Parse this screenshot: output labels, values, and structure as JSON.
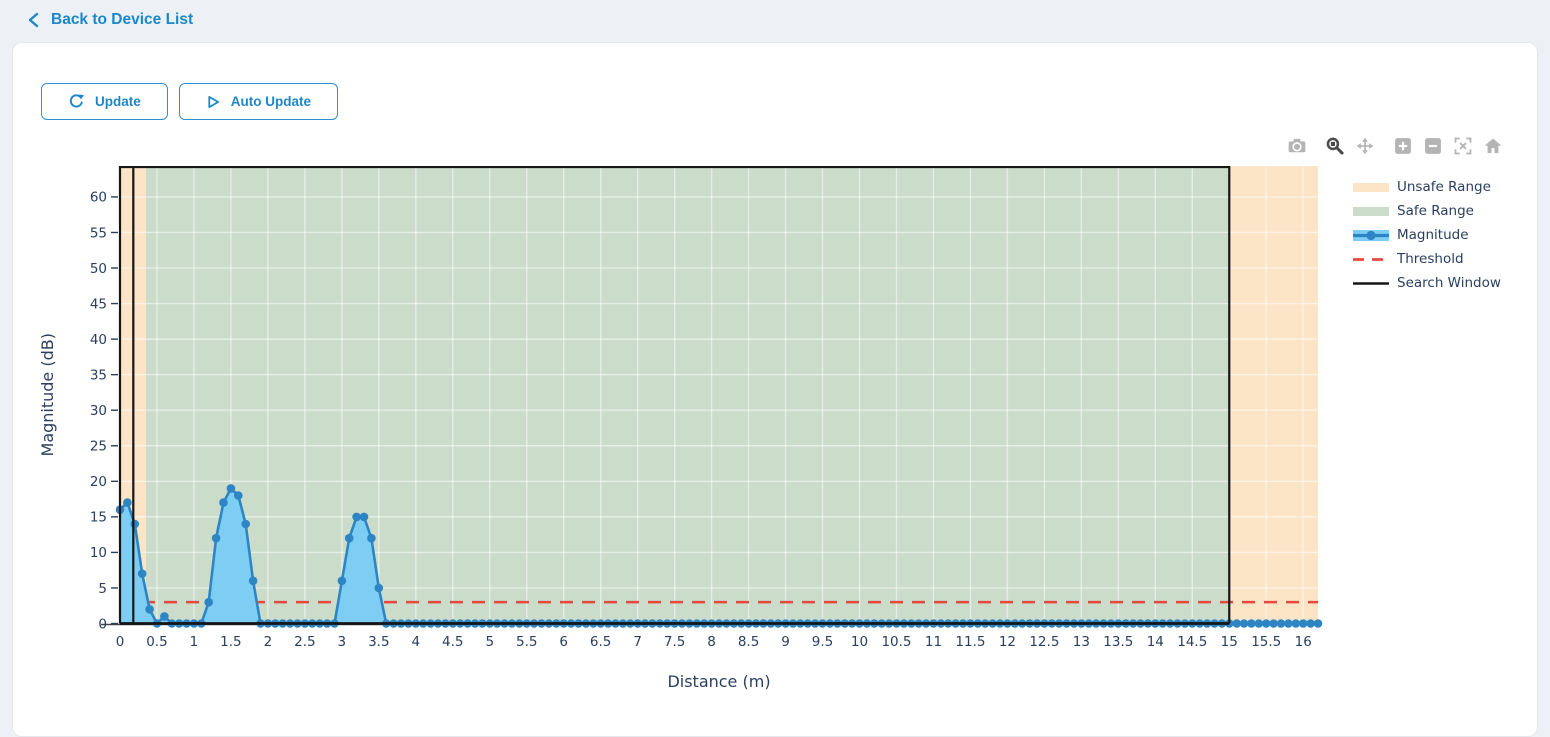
{
  "header": {
    "back_label": "Back to Device List"
  },
  "toolbar": {
    "update_label": "Update",
    "auto_update_label": "Auto Update"
  },
  "modebar": {
    "icons": [
      "camera",
      "zoom",
      "pan",
      "zoom-in",
      "zoom-out",
      "autoscale",
      "home"
    ],
    "active_icon": "zoom"
  },
  "colors": {
    "accent_blue": "#1d87c9",
    "unsafe_fill": "#fbe5c6",
    "safe_fill": "#cbdccb",
    "magnitude_line": "#2e85c4",
    "magnitude_fill": "#7ecdf3",
    "threshold_red": "#e8473e",
    "search_window_black": "#161616",
    "chart_text": "#2a3f5f",
    "axis_line": "#444444",
    "modebar_gray": "#b4b4b4",
    "modebar_active": "#4a4a4a"
  },
  "chart_data": {
    "type": "line",
    "title": "",
    "xlabel": "Distance (m)",
    "ylabel": "Magnitude (dB)",
    "xlim": [
      0,
      16.2
    ],
    "ylim": [
      0,
      64.35
    ],
    "grid": true,
    "legend_position": "right",
    "x_ticks": [
      "0",
      "0.5",
      "1",
      "1.5",
      "2",
      "2.5",
      "3",
      "3.5",
      "4",
      "4.5",
      "5",
      "5.5",
      "6",
      "6.5",
      "7",
      "7.5",
      "8",
      "8.5",
      "9",
      "9.5",
      "10",
      "10.5",
      "11",
      "11.5",
      "12",
      "12.5",
      "13",
      "13.5",
      "14",
      "14.5",
      "15",
      "15.5",
      "16"
    ],
    "y_ticks": [
      0,
      5,
      10,
      15,
      20,
      25,
      30,
      35,
      40,
      45,
      50,
      55,
      60
    ],
    "legend": [
      "Unsafe Range",
      "Safe Range",
      "Magnitude",
      "Threshold",
      "Search Window"
    ],
    "regions": [
      {
        "label": "Unsafe Range",
        "x0": 0,
        "x1": 0.35,
        "color": "#fbe5c6"
      },
      {
        "label": "Safe Range",
        "x0": 0.35,
        "x1": 15,
        "color": "#cbdccb"
      },
      {
        "label": "Unsafe Range",
        "x0": 15,
        "x1": 16.2,
        "color": "#fbe5c6"
      }
    ],
    "threshold": {
      "y": 3,
      "color": "#e8473e",
      "style": "dashed"
    },
    "search_window": {
      "x0": 0,
      "x1": 15,
      "y0": 0,
      "y1": 64.2,
      "inner_line_x": 0.18,
      "color": "#161616"
    },
    "series": [
      {
        "name": "Magnitude",
        "color": "#2e85c4",
        "fill": "#7ecdf3",
        "x_start": 0,
        "x_step": 0.1,
        "values": [
          16,
          17,
          14,
          7,
          2,
          0,
          1,
          0,
          0,
          0,
          0,
          0,
          3,
          12,
          17,
          19,
          18,
          14,
          6,
          0,
          0,
          0,
          0,
          0,
          0,
          0,
          0,
          0,
          0,
          0,
          6,
          12,
          15,
          15,
          12,
          5,
          0,
          0,
          0,
          0,
          0,
          0,
          0,
          0,
          0,
          0,
          0,
          0,
          0,
          0,
          0,
          0,
          0,
          0,
          0,
          0,
          0,
          0,
          0,
          0,
          0,
          0,
          0,
          0,
          0,
          0,
          0,
          0,
          0,
          0,
          0,
          0,
          0,
          0,
          0,
          0,
          0,
          0,
          0,
          0,
          0,
          0,
          0,
          0,
          0,
          0,
          0,
          0,
          0,
          0,
          0,
          0,
          0,
          0,
          0,
          0,
          0,
          0,
          0,
          0,
          0,
          0,
          0,
          0,
          0,
          0,
          0,
          0,
          0,
          0,
          0,
          0,
          0,
          0,
          0,
          0,
          0,
          0,
          0,
          0,
          0,
          0,
          0,
          0,
          0,
          0,
          0,
          0,
          0,
          0,
          0,
          0,
          0,
          0,
          0,
          0,
          0,
          0,
          0,
          0,
          0,
          0,
          0,
          0,
          0,
          0,
          0,
          0,
          0,
          0,
          0,
          0,
          0,
          0,
          0,
          0,
          0,
          0,
          0,
          0,
          0,
          0,
          0
        ]
      }
    ]
  }
}
